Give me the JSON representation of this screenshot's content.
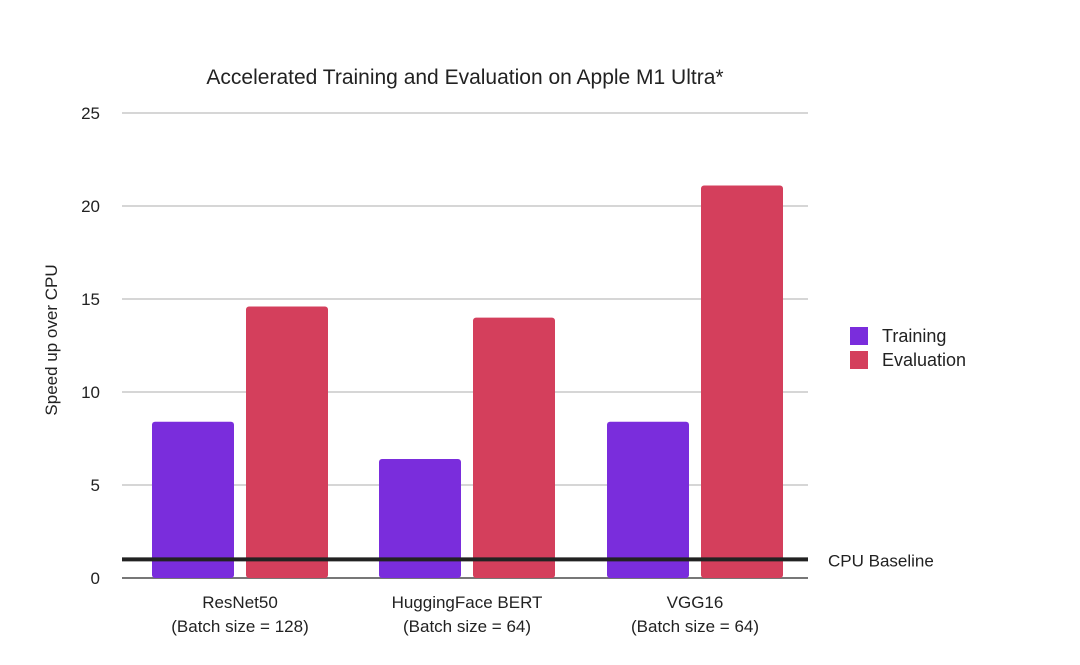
{
  "chart_data": {
    "type": "bar",
    "title": "Accelerated Training and Evaluation on Apple M1 Ultra*",
    "xlabel": "",
    "ylabel": "Speed up over CPU",
    "ylim": [
      0,
      25
    ],
    "yticks": [
      0,
      5,
      10,
      15,
      20,
      25
    ],
    "grid": true,
    "legend_position": "right",
    "categories": [
      [
        "ResNet50",
        "(Batch size = 128)"
      ],
      [
        "HuggingFace BERT",
        "(Batch size = 64)"
      ],
      [
        "VGG16",
        "(Batch size = 64)"
      ]
    ],
    "series": [
      {
        "name": "Training",
        "color": "#7a2ddc",
        "values": [
          8.4,
          6.4,
          8.4
        ]
      },
      {
        "name": "Evaluation",
        "color": "#d43f5c",
        "values": [
          14.6,
          14.0,
          21.1
        ]
      }
    ],
    "reference_line": {
      "label": "CPU Baseline",
      "value": 1,
      "color": "#222222"
    }
  }
}
